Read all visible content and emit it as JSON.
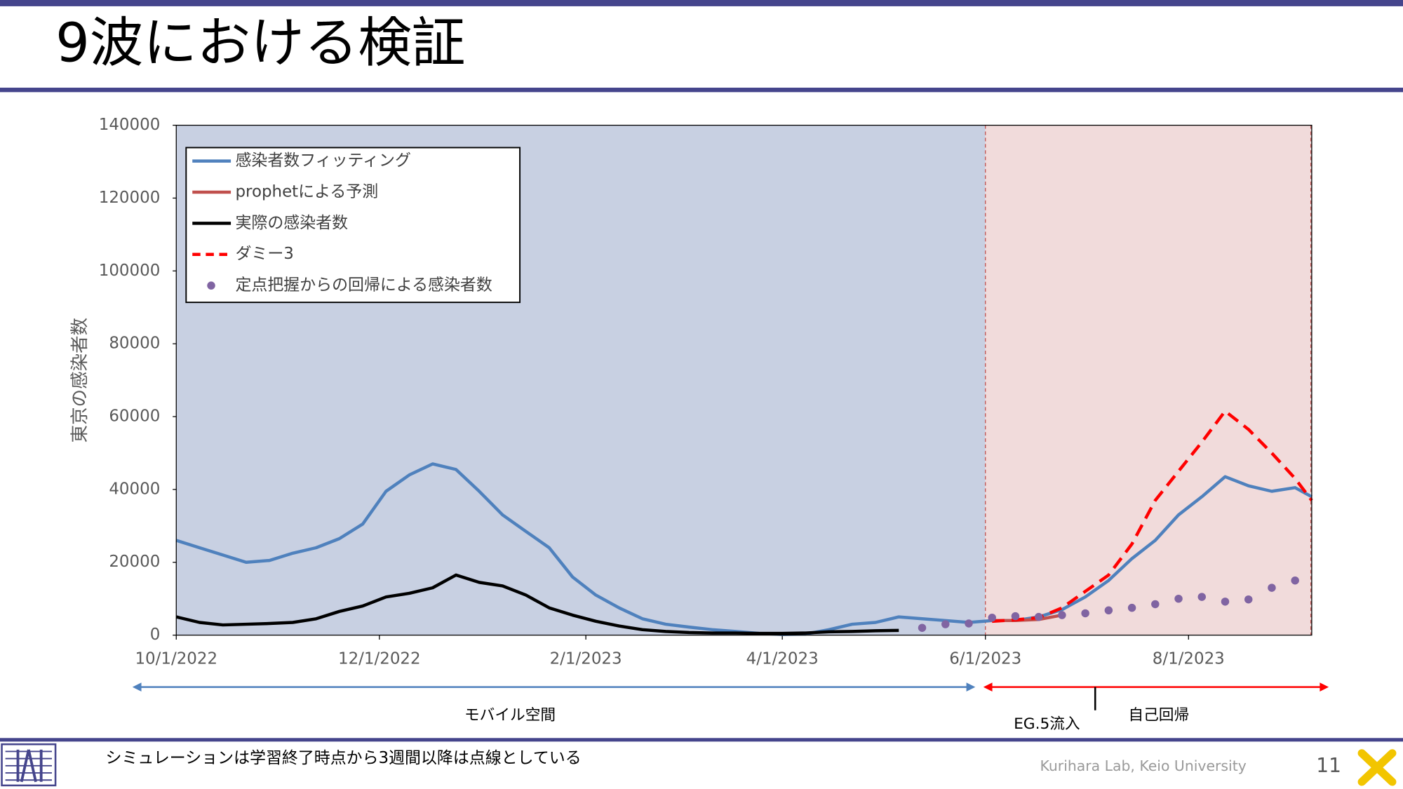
{
  "slide": {
    "title": "9波における検証",
    "note": "シミュレーションは学習終了時点から3週間以降は点線としている",
    "footer": "Kurihara Lab, Keio University",
    "page_number": "11"
  },
  "chart_data": {
    "type": "line",
    "ylabel": "東京の感染者数",
    "x": [
      "10/1/2022",
      "10/8/2022",
      "10/15/2022",
      "10/22/2022",
      "10/29/2022",
      "11/5/2022",
      "11/12/2022",
      "11/19/2022",
      "11/26/2022",
      "12/3/2022",
      "12/10/2022",
      "12/17/2022",
      "12/24/2022",
      "12/31/2022",
      "1/7/2023",
      "1/14/2023",
      "1/21/2023",
      "1/28/2023",
      "2/4/2023",
      "2/11/2023",
      "2/18/2023",
      "2/25/2023",
      "3/4/2023",
      "3/11/2023",
      "3/18/2023",
      "3/25/2023",
      "4/1/2023",
      "4/8/2023",
      "4/15/2023",
      "4/22/2023",
      "4/29/2023",
      "5/6/2023",
      "5/13/2023",
      "5/20/2023",
      "5/27/2023",
      "6/3/2023",
      "6/10/2023",
      "6/17/2023",
      "6/24/2023",
      "7/1/2023",
      "7/8/2023",
      "7/15/2023",
      "7/22/2023",
      "7/29/2023",
      "8/5/2023",
      "8/12/2023",
      "8/19/2023",
      "8/26/2023",
      "9/2/2023",
      "9/7/2023"
    ],
    "xlim": [
      "10/1/2022",
      "9/7/2023"
    ],
    "xticks": [
      "10/1/2022",
      "12/1/2022",
      "2/1/2023",
      "4/1/2023",
      "6/1/2023",
      "8/1/2023"
    ],
    "ylim": [
      0,
      140000
    ],
    "yticks": [
      0,
      20000,
      40000,
      60000,
      80000,
      100000,
      120000,
      140000
    ],
    "regions": [
      {
        "from": "10/1/2022",
        "to": "6/1/2023",
        "color": "#c8d0e2"
      },
      {
        "from": "6/1/2023",
        "to": "9/7/2023",
        "color": "#f1dbdb"
      }
    ],
    "annotations": [
      "モバイル空間",
      "自己回帰",
      "EG.5流入"
    ],
    "series": [
      {
        "name": "感染者数フィッティング",
        "color": "#4f81bd",
        "line_style": "solid",
        "values": [
          26000,
          24000,
          22000,
          20000,
          20500,
          22500,
          24000,
          26500,
          30500,
          39500,
          44000,
          47000,
          45500,
          39500,
          33000,
          28500,
          24000,
          16000,
          11000,
          7500,
          4500,
          3000,
          2200,
          1500,
          1000,
          500,
          200,
          300,
          1500,
          3000,
          3500,
          5000,
          4500,
          4000,
          3500,
          4000,
          4000,
          5000,
          7000,
          10500,
          15000,
          21000,
          26000,
          33000,
          38000,
          43500,
          41000,
          39500,
          40500,
          38000
        ]
      },
      {
        "name": "prophetによる予測",
        "color": "#c0504d",
        "line_style": "solid",
        "values": [
          null,
          null,
          null,
          null,
          null,
          null,
          null,
          null,
          null,
          null,
          null,
          null,
          null,
          null,
          null,
          null,
          null,
          null,
          null,
          null,
          null,
          null,
          null,
          null,
          null,
          null,
          null,
          null,
          null,
          null,
          null,
          null,
          null,
          null,
          null,
          4000,
          4000,
          4300,
          5500,
          null,
          null,
          null,
          null,
          null,
          null,
          null,
          null,
          null,
          null,
          null
        ]
      },
      {
        "name": "実際の感染者数",
        "color": "#000000",
        "line_style": "solid",
        "values": [
          5000,
          3500,
          2800,
          3000,
          3200,
          3500,
          4500,
          6500,
          8000,
          10500,
          11500,
          13000,
          16500,
          14500,
          13500,
          11000,
          7500,
          5500,
          3800,
          2500,
          1500,
          1000,
          700,
          600,
          600,
          500,
          500,
          600,
          900,
          1000,
          1200,
          1300,
          null,
          null,
          null,
          null,
          null,
          null,
          null,
          null,
          null,
          null,
          null,
          null,
          null,
          null,
          null,
          null,
          null,
          null
        ]
      },
      {
        "name": "ダミー3",
        "color": "#ff0000",
        "line_style": "dashed",
        "values": [
          null,
          null,
          null,
          null,
          null,
          null,
          null,
          null,
          null,
          null,
          null,
          null,
          null,
          null,
          null,
          null,
          null,
          null,
          null,
          null,
          null,
          null,
          null,
          null,
          null,
          null,
          null,
          null,
          null,
          null,
          null,
          null,
          null,
          null,
          null,
          3800,
          4200,
          4800,
          7500,
          12000,
          16500,
          25000,
          37000,
          45000,
          53000,
          61500,
          56500,
          50000,
          43000,
          37000
        ]
      },
      {
        "name": "定点把握からの回帰による感染者数",
        "color": "#8064a2",
        "line_style": "dots",
        "values": [
          null,
          null,
          null,
          null,
          null,
          null,
          null,
          null,
          null,
          null,
          null,
          null,
          null,
          null,
          null,
          null,
          null,
          null,
          null,
          null,
          null,
          null,
          null,
          null,
          null,
          null,
          null,
          null,
          null,
          null,
          null,
          null,
          2000,
          3000,
          3200,
          4800,
          5200,
          5000,
          5500,
          6000,
          6800,
          7500,
          8500,
          10000,
          10500,
          9200,
          9800,
          13000,
          15000,
          null
        ]
      }
    ]
  }
}
